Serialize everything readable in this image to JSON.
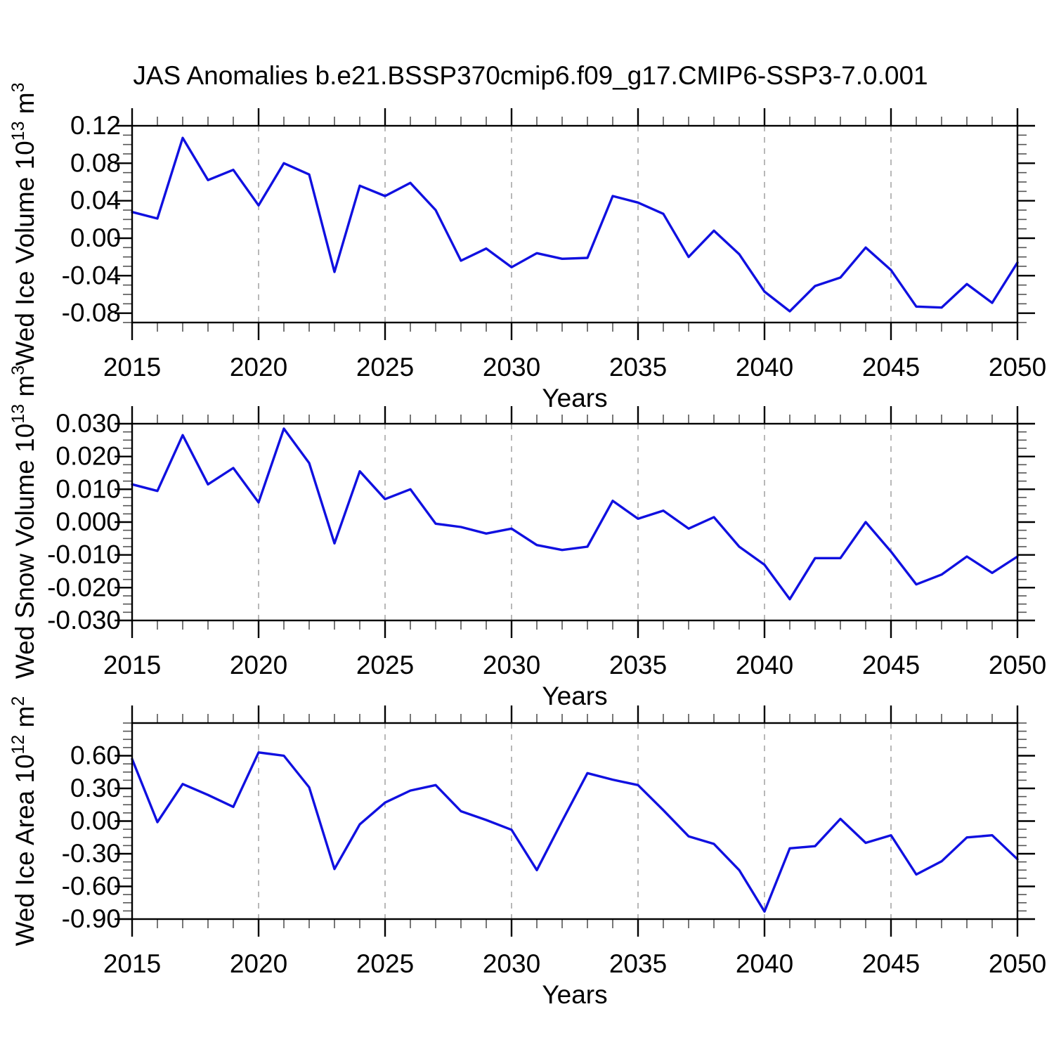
{
  "title": "JAS Anomalies b.e21.BSSP370cmip6.f09_g17.CMIP6-SSP3-7.0.001",
  "colors": {
    "line": "#1010e0",
    "grid": "#999999",
    "axis": "#000000",
    "minor_tick": "#555555",
    "text": "#000000",
    "background": "#ffffff"
  },
  "x_axis": {
    "label": "Years",
    "major_tick_years": [
      2015,
      2020,
      2025,
      2030,
      2035,
      2040,
      2045,
      2050
    ],
    "major_tick_labels": [
      "2015",
      "2020",
      "2025",
      "2030",
      "2035",
      "2040",
      "2045",
      "2050"
    ],
    "minor_tick_step_years": 1,
    "grid_years": [
      2020,
      2025,
      2030,
      2035,
      2040,
      2045
    ],
    "xlim": [
      2015,
      2050
    ]
  },
  "chart_data": [
    {
      "type": "line",
      "name": "wed-ice-volume",
      "ylabel_text": "Wed Ice Volume 10^13 m^3",
      "ylabel_segments": [
        {
          "t": "Wed Ice Volume 10"
        },
        {
          "t": "13",
          "sup": true
        },
        {
          "t": " m"
        },
        {
          "t": "3",
          "sup": true
        }
      ],
      "xlabel": "Years",
      "ylim": [
        -0.09,
        0.12
      ],
      "yticks": [
        0.12,
        0.08,
        0.04,
        0.0,
        -0.04,
        -0.08
      ],
      "ytick_labels": [
        "0.12",
        "0.08",
        "0.04",
        "0.00",
        "-0.04",
        "-0.08"
      ],
      "ytick_minor_step": 0.01,
      "x": [
        2015,
        2016,
        2017,
        2018,
        2019,
        2020,
        2021,
        2022,
        2023,
        2024,
        2025,
        2026,
        2027,
        2028,
        2029,
        2030,
        2031,
        2032,
        2033,
        2034,
        2035,
        2036,
        2037,
        2038,
        2039,
        2040,
        2041,
        2042,
        2043,
        2044,
        2045,
        2046,
        2047,
        2048,
        2049,
        2050
      ],
      "values": [
        0.028,
        0.021,
        0.107,
        0.062,
        0.073,
        0.035,
        0.08,
        0.068,
        -0.036,
        0.056,
        0.045,
        0.059,
        0.03,
        -0.024,
        -0.011,
        -0.031,
        -0.016,
        -0.022,
        -0.021,
        0.045,
        0.038,
        0.026,
        -0.02,
        0.008,
        -0.017,
        -0.057,
        -0.078,
        -0.051,
        -0.042,
        -0.01,
        -0.034,
        -0.073,
        -0.074,
        -0.049,
        -0.069,
        -0.026
      ]
    },
    {
      "type": "line",
      "name": "wed-snow-volume",
      "ylabel_text": "Wed Snow Volume 10^13 m^3",
      "ylabel_segments": [
        {
          "t": "Wed Snow Volume 10"
        },
        {
          "t": "13",
          "sup": true
        },
        {
          "t": " m"
        },
        {
          "t": "3",
          "sup": true
        }
      ],
      "xlabel": "Years",
      "ylim": [
        -0.03,
        0.03
      ],
      "yticks": [
        0.03,
        0.02,
        0.01,
        0.0,
        -0.01,
        -0.02,
        -0.03
      ],
      "ytick_labels": [
        "0.030",
        "0.020",
        "0.010",
        "0.000",
        "-0.010",
        "-0.020",
        "-0.030"
      ],
      "ytick_minor_step": 0.0025,
      "x": [
        2015,
        2016,
        2017,
        2018,
        2019,
        2020,
        2021,
        2022,
        2023,
        2024,
        2025,
        2026,
        2027,
        2028,
        2029,
        2030,
        2031,
        2032,
        2033,
        2034,
        2035,
        2036,
        2037,
        2038,
        2039,
        2040,
        2041,
        2042,
        2043,
        2044,
        2045,
        2046,
        2047,
        2048,
        2049,
        2050
      ],
      "values": [
        0.0115,
        0.0095,
        0.0265,
        0.0115,
        0.0165,
        0.006,
        0.0285,
        0.018,
        -0.0065,
        0.0155,
        0.007,
        0.01,
        -0.0005,
        -0.0015,
        -0.0035,
        -0.002,
        -0.007,
        -0.0085,
        -0.0075,
        0.0065,
        0.001,
        0.0035,
        -0.002,
        0.0015,
        -0.0075,
        -0.013,
        -0.0235,
        -0.011,
        -0.011,
        0.0,
        -0.009,
        -0.019,
        -0.016,
        -0.0105,
        -0.0155,
        -0.0105
      ]
    },
    {
      "type": "line",
      "name": "wed-ice-area",
      "ylabel_text": "Wed Ice Area 10^12 m^2",
      "ylabel_segments": [
        {
          "t": "Wed Ice Area 10"
        },
        {
          "t": "12",
          "sup": true
        },
        {
          "t": " m"
        },
        {
          "t": "2",
          "sup": true
        }
      ],
      "xlabel": "Years",
      "ylim": [
        -0.9,
        0.9
      ],
      "yticks": [
        0.6,
        0.3,
        0.0,
        -0.3,
        -0.6,
        -0.9
      ],
      "ytick_labels": [
        "0.60",
        "0.30",
        "0.00",
        "-0.30",
        "-0.60",
        "-0.90"
      ],
      "ytick_minor_step": 0.075,
      "x": [
        2015,
        2016,
        2017,
        2018,
        2019,
        2020,
        2021,
        2022,
        2023,
        2024,
        2025,
        2026,
        2027,
        2028,
        2029,
        2030,
        2031,
        2032,
        2033,
        2034,
        2035,
        2036,
        2037,
        2038,
        2039,
        2040,
        2041,
        2042,
        2043,
        2044,
        2045,
        2046,
        2047,
        2048,
        2049,
        2050
      ],
      "values": [
        0.57,
        -0.01,
        0.34,
        0.24,
        0.13,
        0.63,
        0.6,
        0.31,
        -0.44,
        -0.03,
        0.17,
        0.28,
        0.33,
        0.09,
        0.01,
        -0.08,
        -0.45,
        0.0,
        0.44,
        0.38,
        0.33,
        0.1,
        -0.14,
        -0.21,
        -0.45,
        -0.83,
        -0.25,
        -0.23,
        0.02,
        -0.2,
        -0.13,
        -0.49,
        -0.37,
        -0.15,
        -0.13,
        -0.35
      ]
    }
  ]
}
